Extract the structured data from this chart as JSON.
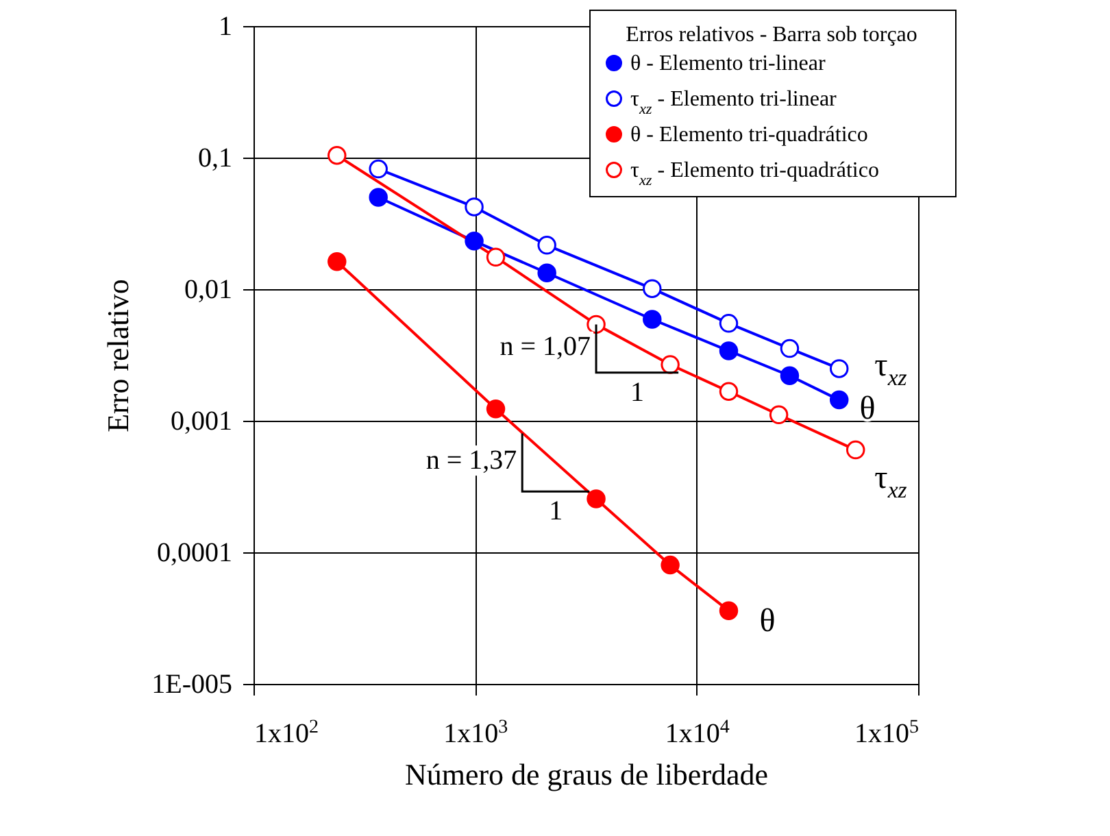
{
  "chart_data": {
    "type": "line",
    "xlabel": "Número de graus de liberdade",
    "ylabel": "Erro relativo",
    "legend_title": "Erros relativos - Barra sob torçao",
    "log": "xy",
    "grid": true,
    "legend": "top right",
    "xlim": [
      100,
      100000
    ],
    "xticks": [
      {
        "value": 100,
        "label": "1x10$^{2}$"
      },
      {
        "value": 1000,
        "label": "1x10$^{3}$"
      },
      {
        "value": 10000,
        "label": "1x10$^{4}$"
      },
      {
        "value": 100000,
        "label": "1x10$^{5}$"
      }
    ],
    "ylim": [
      1e-05,
      1
    ],
    "yticks": [
      {
        "value": 1e-05,
        "label": "1E-005"
      },
      {
        "value": 0.0001,
        "label": "0,0001"
      },
      {
        "value": 0.001,
        "label": "0,001"
      },
      {
        "value": 0.01,
        "label": "0,01"
      },
      {
        "value": 0.1,
        "label": "0,1"
      },
      1
    ],
    "series": [
      {
        "name": "θ - Elemento tri-linear",
        "color": "#0000ff",
        "marker": "circle",
        "x": [
          366,
          991,
          2110,
          6300,
          13960,
          26300,
          44000
        ],
        "values": [
          0.0499,
          0.0232,
          0.0133,
          0.0059,
          0.0034,
          0.0022,
          0.00144
        ]
      },
      {
        "name": "τ$_{xz}$ - Elemento tri-linear",
        "color": "#0000ff",
        "marker": "circle-open",
        "x": [
          366,
          991,
          2110,
          6300,
          13960,
          26300,
          44000
        ],
        "values": [
          0.082,
          0.0422,
          0.0216,
          0.0101,
          0.0055,
          0.00354,
          0.00249
        ]
      },
      {
        "name": "θ - Elemento tri-quadrático",
        "color": "#ff0000",
        "marker": "circle",
        "x": [
          238,
          1240,
          3520,
          7600,
          13960
        ],
        "values": [
          0.0162,
          0.00123,
          0.000255,
          8e-05,
          3.6e-05
        ]
      },
      {
        "name": "τ$_{xz}$ - Elemento tri-quadrático",
        "color": "#ff0000",
        "marker": "circle-open",
        "x": [
          238,
          1240,
          3520,
          7600,
          13960,
          23500,
          52200
        ],
        "values": [
          0.104,
          0.0175,
          0.0054,
          0.00267,
          0.00167,
          0.00111,
          0.0006
        ]
      }
    ],
    "annotations": [
      {
        "text": "n = 1,07",
        "x": 3520,
        "y": 0.0054
      },
      {
        "text": "1",
        "x": 8280,
        "y": 0.00232
      },
      {
        "text": "n = 1,37",
        "x": 1633,
        "y": 0.0008
      },
      {
        "text": "1",
        "x": 3280,
        "y": 0.00029
      },
      "τ$_{xz}$",
      "θ",
      "τ$_{xz}$",
      "θ"
    ]
  }
}
